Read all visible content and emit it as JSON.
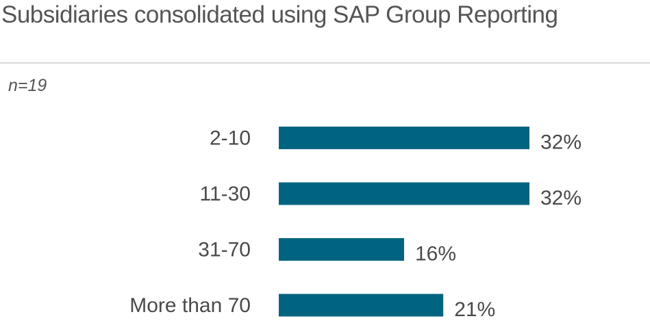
{
  "title": "Subsidiaries consolidated using SAP Group Reporting",
  "sample_size": "n=19",
  "chart_data": {
    "type": "bar",
    "orientation": "horizontal",
    "title": "Subsidiaries consolidated using SAP Group Reporting",
    "subtitle": "n=19",
    "categories": [
      "2-10",
      "11-30",
      "31-70",
      "More than 70"
    ],
    "values": [
      32,
      32,
      16,
      21
    ],
    "value_labels": [
      "32%",
      "32%",
      "16%",
      "21%"
    ],
    "unit": "%",
    "bar_color": "#006480",
    "xlabel": "",
    "ylabel": "",
    "xlim": [
      0,
      32
    ],
    "grid": false,
    "legend": "none"
  }
}
